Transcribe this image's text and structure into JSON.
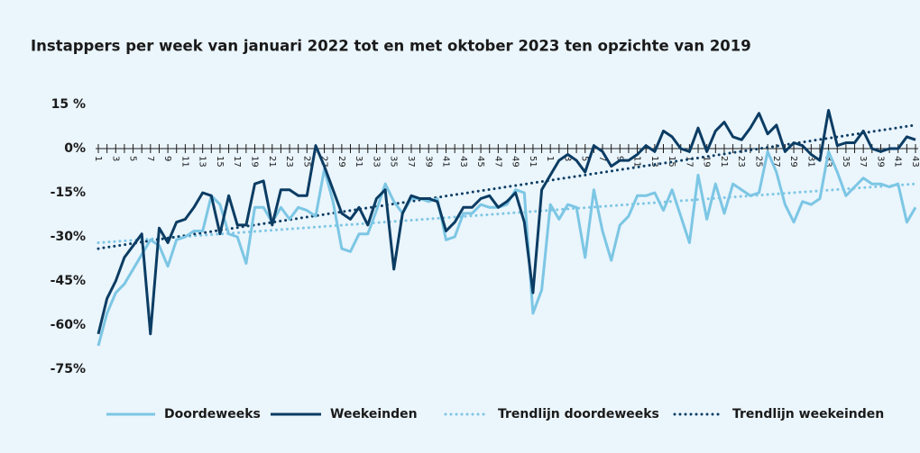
{
  "chart_data": {
    "type": "line",
    "title": "Instappers per week van januari 2022 tot en met oktober 2023 ten opzichte van 2019",
    "categories": [
      "1",
      null,
      "3",
      null,
      "5",
      null,
      "7",
      null,
      "9",
      null,
      "11",
      null,
      "13",
      null,
      "15",
      null,
      "17",
      null,
      "19",
      null,
      "21",
      null,
      "23",
      null,
      "25",
      null,
      "27",
      null,
      "29",
      null,
      "31",
      null,
      "33",
      null,
      "35",
      null,
      "37",
      null,
      "39",
      null,
      "41",
      null,
      "43",
      null,
      "45",
      null,
      "47",
      null,
      "49",
      null,
      "51",
      null,
      "1",
      null,
      "3",
      null,
      "5",
      null,
      "7",
      null,
      "9",
      null,
      "11",
      null,
      "13",
      null,
      "15",
      null,
      "17",
      null,
      "19",
      null,
      "21",
      null,
      "23",
      null,
      "25",
      null,
      "27",
      null,
      "29",
      null,
      "31",
      null,
      "33",
      null,
      "35",
      null,
      "37",
      null,
      "39",
      null,
      "41",
      null,
      "43"
    ],
    "series": [
      {
        "name": "Doordeweeks",
        "color": "#7cc6e4",
        "values": [
          -67,
          -56,
          -49,
          -46,
          -41,
          -36,
          -31,
          -33,
          -40,
          -31,
          -30,
          -28,
          -28,
          -16,
          -19,
          -29,
          -30,
          -39,
          -20,
          -20,
          -25,
          -20,
          -24,
          -20,
          -21,
          -23,
          -7,
          -18,
          -34,
          -35,
          -29,
          -29,
          -21,
          -12,
          -18,
          -22,
          -17,
          -17,
          -18,
          -17,
          -31,
          -30,
          -22,
          -22,
          -19,
          -20,
          -20,
          -19,
          -14,
          -15,
          -56,
          -48,
          -19,
          -24,
          -19,
          -20,
          -37,
          -14,
          -28,
          -38,
          -26,
          -23,
          -16,
          -16,
          -15,
          -21,
          -14,
          -23,
          -32,
          -9,
          -24,
          -12,
          -22,
          -12,
          -14,
          -16,
          -15,
          -1,
          -8,
          -19,
          -25,
          -18,
          -19,
          -17,
          -1,
          -8,
          -16,
          -13,
          -10,
          -12,
          -12,
          -13,
          -12,
          -25,
          -20
        ]
      },
      {
        "name": "Weekeinden",
        "color": "#0b3c63",
        "values": [
          -63,
          -51,
          -45,
          -37,
          -33,
          -29,
          -63,
          -27,
          -32,
          -25,
          -24,
          -20,
          -15,
          -16,
          -29,
          -16,
          -26,
          -26,
          -12,
          -11,
          -26,
          -14,
          -14,
          -16,
          -16,
          1,
          -6,
          -14,
          -22,
          -24,
          -20,
          -26,
          -17,
          -14,
          -41,
          -22,
          -16,
          -17,
          -17,
          -18,
          -28,
          -25,
          -20,
          -20,
          -17,
          -16,
          -20,
          -18,
          -15,
          -25,
          -49,
          -14,
          -9,
          -4,
          -2,
          -4,
          -8,
          1,
          -1,
          -6,
          -4,
          -4,
          -2,
          1,
          -1,
          6,
          4,
          0,
          -1,
          7,
          -1,
          6,
          9,
          4,
          3,
          7,
          12,
          5,
          8,
          -1,
          2,
          1,
          -2,
          -4,
          13,
          1,
          2,
          2,
          6,
          0,
          -1,
          0,
          0,
          4,
          3
        ]
      }
    ],
    "trendlines": [
      {
        "name": "Trendlijn doordeweeks",
        "color": "#7cc6e4",
        "start": -32,
        "end": -12
      },
      {
        "name": "Trendlijn weekeinden",
        "color": "#0b3c63",
        "start": -34,
        "end": 8
      }
    ],
    "ylim": [
      -75,
      15
    ],
    "yticks": [
      {
        "value": 15,
        "label": "15 %"
      },
      {
        "value": 0,
        "label": "0%"
      },
      {
        "value": -15,
        "label": "-15%"
      },
      {
        "value": -30,
        "label": "-30%"
      },
      {
        "value": -45,
        "label": "-45%"
      },
      {
        "value": -60,
        "label": "-60%"
      },
      {
        "value": -75,
        "label": "-75%"
      }
    ],
    "legend": "bottom"
  }
}
